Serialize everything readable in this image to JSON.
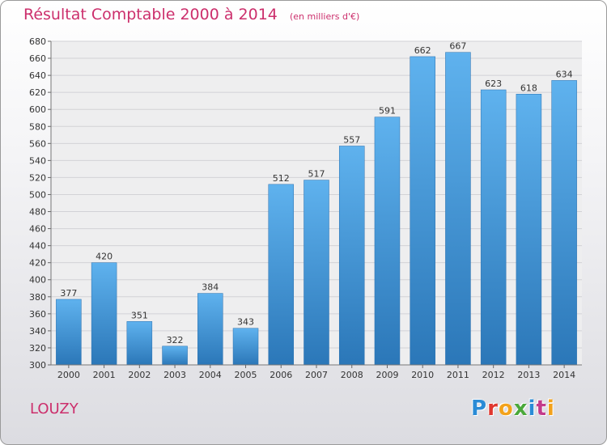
{
  "header": {
    "title": "Résultat Comptable 2000 à 2014",
    "unit_note": "(en milliers d'€)"
  },
  "footer": {
    "place_name": "LOUZY",
    "logo_text": "Proxiti",
    "logo_colors": [
      "#2a8bd6",
      "#e0372f",
      "#f3a21b",
      "#4aa83a",
      "#2a8bd6",
      "#c33b8b",
      "#f3a21b"
    ]
  },
  "chart_data": {
    "type": "bar",
    "title": "Résultat Comptable 2000 à 2014",
    "xlabel": "",
    "ylabel": "",
    "categories": [
      "2000",
      "2001",
      "2002",
      "2003",
      "2004",
      "2005",
      "2006",
      "2007",
      "2008",
      "2009",
      "2010",
      "2011",
      "2012",
      "2013",
      "2014"
    ],
    "values": [
      377,
      420,
      351,
      322,
      384,
      343,
      512,
      517,
      557,
      591,
      662,
      667,
      623,
      618,
      634
    ],
    "ylim": [
      300,
      680
    ],
    "ytick_step": 20,
    "grid": true,
    "bar_color": "#3a8fd6"
  }
}
